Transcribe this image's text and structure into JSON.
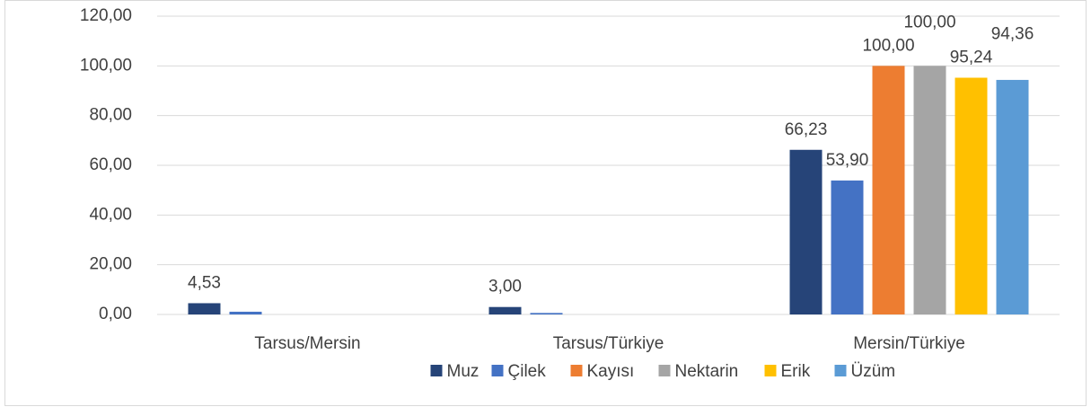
{
  "chart_data": {
    "type": "bar",
    "categories": [
      "Tarsus/Mersin",
      "Tarsus/Türkiye",
      "Mersin/Türkiye"
    ],
    "series": [
      {
        "name": "Muz",
        "color": "#264478",
        "values": [
          4.53,
          3.0,
          66.23
        ],
        "value_labels": [
          "4,53",
          "3,00",
          "66,23"
        ]
      },
      {
        "name": "Çilek",
        "color": "#4472c4",
        "values": [
          1.1,
          0.6,
          53.9
        ],
        "value_labels": [
          null,
          null,
          "53,90"
        ]
      },
      {
        "name": "Kayısı",
        "color": "#ed7d31",
        "values": [
          null,
          null,
          100.0
        ],
        "value_labels": [
          null,
          null,
          "100,00"
        ]
      },
      {
        "name": "Nektarin",
        "color": "#a5a5a5",
        "values": [
          null,
          null,
          100.0
        ],
        "value_labels": [
          null,
          null,
          "100,00"
        ]
      },
      {
        "name": "Erik",
        "color": "#ffc000",
        "values": [
          null,
          null,
          95.24
        ],
        "value_labels": [
          null,
          null,
          "95,24"
        ]
      },
      {
        "name": "Üzüm",
        "color": "#5b9bd5",
        "values": [
          null,
          null,
          94.36
        ],
        "value_labels": [
          null,
          null,
          "94,36"
        ]
      }
    ],
    "ylim": [
      0,
      120
    ],
    "yticks": [
      {
        "value": 0,
        "label": "0,00"
      },
      {
        "value": 20,
        "label": "20,00"
      },
      {
        "value": 40,
        "label": "40,00"
      },
      {
        "value": 60,
        "label": "60,00"
      },
      {
        "value": 80,
        "label": "80,00"
      },
      {
        "value": 100,
        "label": "100,00"
      },
      {
        "value": 120,
        "label": "120,00"
      }
    ],
    "grid": true,
    "legend": "bottom"
  }
}
